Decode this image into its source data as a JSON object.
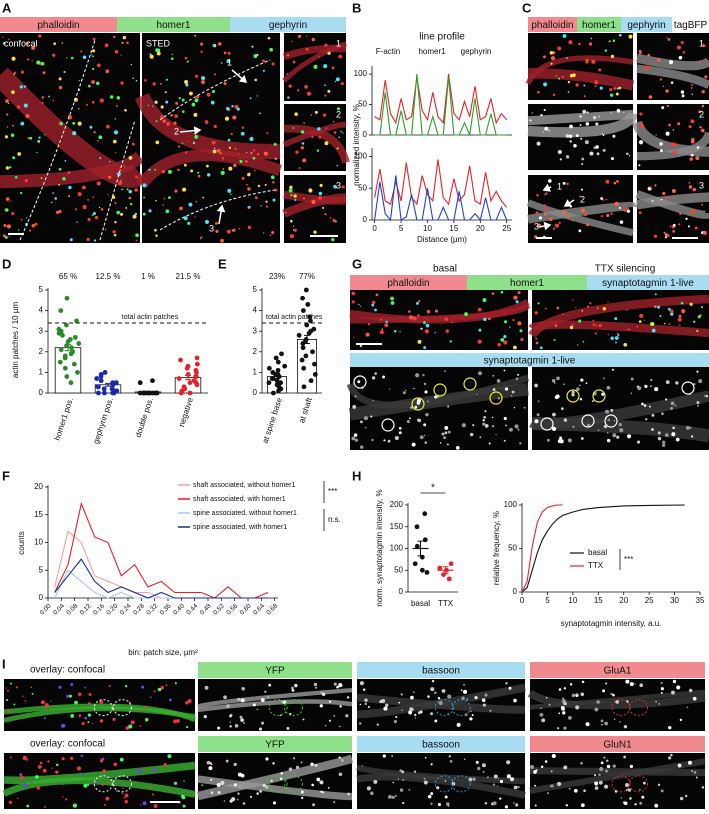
{
  "panel_letters": [
    "A",
    "B",
    "C",
    "D",
    "E",
    "F",
    "G",
    "H",
    "I"
  ],
  "panel_a": {
    "headers": [
      "phalloidin",
      "homer1",
      "gephyrin"
    ],
    "image_labels": [
      "confocal",
      "STED"
    ],
    "arrow_labels": [
      "1",
      "2",
      "3"
    ],
    "inset_labels": [
      "1",
      "2",
      "3"
    ]
  },
  "panel_c": {
    "headers": [
      "phalloidin",
      "homer1",
      "gephyrin",
      "tagBFP"
    ],
    "arrow_labels": [
      "1",
      "2",
      "3"
    ],
    "inset_labels": [
      "1",
      "2",
      "3"
    ]
  },
  "panel_g": {
    "conditions": [
      "basal",
      "TTX silencing"
    ],
    "headers": [
      "phalloidin",
      "homer1",
      "synaptotagmin 1-live"
    ],
    "live_header": "synaptotagmin 1-live"
  },
  "panel_i": {
    "rows": [
      [
        "overlay: confocal",
        "YFP",
        "bassoon",
        "GluA1"
      ],
      [
        "overlay: confocal",
        "YFP",
        "bassoon",
        "GluN1"
      ]
    ]
  },
  "chart_data": [
    {
      "type": "line",
      "title": "line profile",
      "ylabel": "normalized intensity, %",
      "x": [
        0,
        1,
        2,
        3,
        4,
        5,
        6,
        7,
        8,
        9,
        10,
        11,
        12,
        13,
        14,
        15,
        16,
        17,
        18,
        19,
        20,
        21,
        22,
        23,
        24,
        25
      ],
      "series": [
        {
          "name": "F-actin",
          "color": "#e8202a",
          "values": [
            30,
            25,
            90,
            35,
            20,
            60,
            25,
            30,
            95,
            40,
            25,
            70,
            30,
            20,
            100,
            35,
            25,
            55,
            30,
            80,
            25,
            30,
            60,
            20,
            35,
            25
          ]
        },
        {
          "name": "homer1",
          "color": "#2aa02a",
          "values": [
            0,
            0,
            70,
            0,
            0,
            40,
            0,
            0,
            100,
            0,
            0,
            30,
            0,
            0,
            95,
            0,
            0,
            20,
            0,
            60,
            0,
            0,
            35,
            0,
            0,
            0
          ]
        }
      ],
      "xlim": [
        -0.5,
        26
      ],
      "ylim": [
        0,
        110
      ],
      "yticks": [
        0,
        50,
        100
      ]
    },
    {
      "type": "line",
      "xlabel": "Distance (µm)",
      "x": [
        0,
        1,
        2,
        3,
        4,
        5,
        6,
        7,
        8,
        9,
        10,
        11,
        12,
        13,
        14,
        15,
        16,
        17,
        18,
        19,
        20,
        21,
        22,
        23,
        24,
        25
      ],
      "series": [
        {
          "name": "F-actin",
          "color": "#e8202a",
          "values": [
            35,
            80,
            30,
            25,
            60,
            30,
            90,
            35,
            25,
            70,
            40,
            30,
            95,
            35,
            25,
            65,
            30,
            40,
            85,
            30,
            25,
            75,
            30,
            45,
            30,
            20
          ]
        },
        {
          "name": "gephyrin",
          "color": "#2040d0",
          "values": [
            0,
            60,
            10,
            0,
            70,
            0,
            5,
            40,
            0,
            0,
            50,
            0,
            0,
            20,
            0,
            0,
            45,
            0,
            0,
            10,
            0,
            35,
            0,
            0,
            20,
            0
          ]
        }
      ],
      "xlim": [
        -0.5,
        26
      ],
      "xticks": [
        0,
        5,
        10,
        15,
        20,
        25
      ],
      "ylim": [
        0,
        110
      ],
      "yticks": [
        0,
        50,
        100
      ]
    },
    {
      "type": "dot_bar",
      "ylabel": "actin patches / 10 µm",
      "categories": [
        "homer1 pos.",
        "gephyrin pos.",
        "double pos.",
        "negative"
      ],
      "annotations": [
        "65 %",
        "12.5 %",
        "1 %",
        "21.5 %"
      ],
      "values": [
        2.2,
        0.4,
        0.05,
        0.75
      ],
      "errors": [
        0.15,
        0.07,
        0.03,
        0.1
      ],
      "colors": [
        "#2a8a2a",
        "#1a2ab0",
        "#111111",
        "#e8202a"
      ],
      "points": [
        [
          4.6,
          4.0,
          3.5,
          3.3,
          3.1,
          3.0,
          2.9,
          2.8,
          2.7,
          2.6,
          2.5,
          2.4,
          2.3,
          2.2,
          2.1,
          2.0,
          1.9,
          1.8,
          1.7,
          1.5,
          1.4,
          1.2,
          1.0,
          0.8,
          0.5
        ],
        [
          1.0,
          0.9,
          0.8,
          0.7,
          0.6,
          0.5,
          0.5,
          0.4,
          0.4,
          0.3,
          0.3,
          0.2,
          0.2,
          0.1,
          0.1,
          0,
          0,
          0,
          0
        ],
        [
          0.6,
          0.5,
          0,
          0,
          0,
          0,
          0,
          0,
          0,
          0,
          0,
          0
        ],
        [
          1.7,
          1.6,
          1.4,
          1.3,
          1.2,
          1.1,
          1.0,
          0.9,
          0.8,
          0.8,
          0.7,
          0.6,
          0.5,
          0.5,
          0.4,
          0.3,
          0.2,
          0.1,
          0,
          0
        ]
      ],
      "reference": {
        "value": 3.4,
        "label": "total actin patches"
      },
      "ylim": [
        0,
        5
      ],
      "yticks": [
        0,
        1,
        2,
        3,
        4,
        5
      ]
    },
    {
      "type": "dot_bar",
      "categories": [
        "at spine base",
        "at shaft"
      ],
      "annotations": [
        "23%",
        "77%"
      ],
      "values": [
        0.8,
        2.6
      ],
      "errors": [
        0.1,
        0.2
      ],
      "colors": [
        "#111111",
        "#111111"
      ],
      "points": [
        [
          1.9,
          1.7,
          1.5,
          1.3,
          1.2,
          1.1,
          1.0,
          0.9,
          0.9,
          0.8,
          0.7,
          0.7,
          0.6,
          0.5,
          0.5,
          0.4,
          0.3,
          0.2,
          0.1,
          0
        ],
        [
          5.0,
          4.6,
          4.3,
          4.0,
          3.7,
          3.5,
          3.3,
          3.1,
          3.0,
          2.9,
          2.8,
          2.6,
          2.5,
          2.4,
          2.2,
          2.0,
          1.8,
          1.6,
          1.4,
          1.2,
          0.9,
          0.6,
          0.3
        ]
      ],
      "reference": {
        "value": 3.4,
        "label": "total actin patches"
      },
      "ylim": [
        0,
        5
      ],
      "yticks": [
        0,
        1,
        2,
        3,
        4,
        5
      ]
    },
    {
      "type": "line",
      "ylabel": "counts",
      "xlabel": "bin: patch size, µm²",
      "x": [
        0.02,
        0.06,
        0.1,
        0.14,
        0.18,
        0.22,
        0.26,
        0.3,
        0.34,
        0.38,
        0.42,
        0.46,
        0.5,
        0.54,
        0.58,
        0.62,
        0.66
      ],
      "series": [
        {
          "name": "shaft associated, without homer1",
          "color": "#f4a0a0",
          "values": [
            2,
            12,
            10,
            4,
            3,
            2,
            1,
            1,
            0,
            0,
            0,
            0,
            0,
            0,
            0,
            0,
            0
          ]
        },
        {
          "name": "shaft associated, with homer1",
          "color": "#e8202a",
          "values": [
            1,
            6,
            17,
            11,
            10,
            4,
            6,
            2,
            3,
            1,
            1,
            1,
            0,
            2,
            0,
            0,
            1
          ]
        },
        {
          "name": "spine associated, without homer1",
          "color": "#a8c8f0",
          "values": [
            0,
            5,
            3,
            1,
            0,
            1,
            0,
            0,
            0,
            0,
            0,
            0,
            0,
            0,
            0,
            0,
            0
          ]
        },
        {
          "name": "spine associated, with homer1",
          "color": "#1a2a9a",
          "values": [
            1,
            4,
            7,
            3,
            1,
            2,
            1,
            0,
            1,
            0,
            0,
            0,
            0,
            0,
            0,
            0,
            0
          ]
        }
      ],
      "significance": [
        "***",
        "n.s."
      ],
      "xlim": [
        0,
        0.69
      ],
      "xticks": [
        {
          "value": 0,
          "label": "0.00"
        },
        0.04,
        0.08,
        0.12,
        0.16,
        {
          "value": 0.2,
          "label": "0.20"
        },
        0.24,
        0.28,
        0.32,
        0.36,
        {
          "value": 0.4,
          "label": "0.40"
        },
        0.44,
        0.48,
        0.52,
        0.56,
        {
          "value": 0.6,
          "label": "0.60"
        },
        0.64,
        0.68
      ],
      "ylim": [
        0,
        20
      ],
      "yticks": [
        0,
        5,
        10,
        15,
        20
      ]
    },
    {
      "type": "dot_mean",
      "ylabel": "norm. synaptotagmin intensity, %",
      "categories": [
        "basal",
        "TTX"
      ],
      "values": [
        100,
        50
      ],
      "errors": [
        17,
        8
      ],
      "colors": [
        "#111111",
        "#e8202a"
      ],
      "points": [
        [
          180,
          150,
          120,
          105,
          80,
          65,
          50,
          45
        ],
        [
          65,
          55,
          50,
          40,
          30
        ]
      ],
      "significance": "*",
      "ylim": [
        0,
        200
      ],
      "yticks": [
        0,
        50,
        100,
        150,
        200
      ]
    },
    {
      "type": "line",
      "ylabel": "relative frequency, %",
      "xlabel": "synaptotagmin intensity, a.u.",
      "x": [
        0,
        1,
        2,
        3,
        4,
        5,
        6,
        7,
        8,
        10,
        12,
        15,
        20,
        25,
        32
      ],
      "series": [
        {
          "name": "basal",
          "color": "#111111",
          "values": [
            0,
            5,
            25,
            45,
            60,
            70,
            78,
            84,
            88,
            92,
            95,
            97,
            99,
            99.5,
            100
          ]
        },
        {
          "name": "TTX",
          "color": "#e8202a",
          "values": [
            0,
            12,
            52,
            80,
            92,
            97,
            99,
            100,
            100,
            null,
            null,
            null,
            null,
            null,
            null
          ]
        }
      ],
      "significance": "***",
      "xlim": [
        0,
        35
      ],
      "xticks": [
        0,
        5,
        10,
        15,
        20,
        25,
        30,
        35
      ],
      "ylim": [
        0,
        100
      ],
      "yticks": [
        0,
        50,
        100
      ]
    }
  ]
}
